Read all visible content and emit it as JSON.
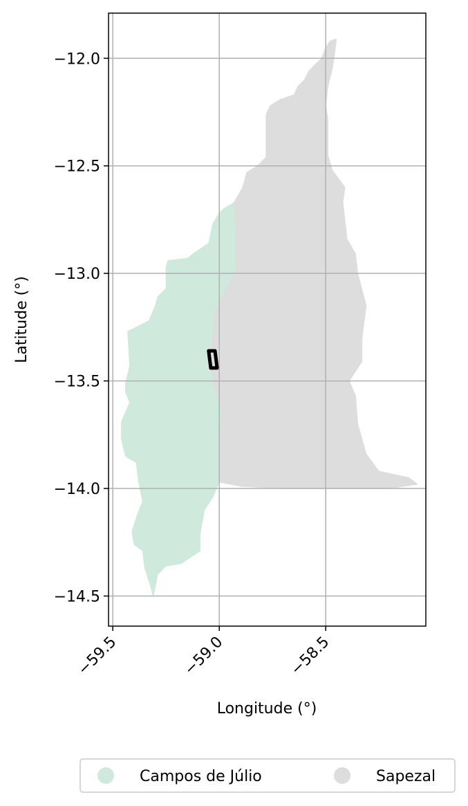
{
  "chart_data": {
    "type": "map",
    "xlabel": "Longitude (°)",
    "ylabel": "Latitude (°)",
    "xlim": [
      -59.52,
      -58.03
    ],
    "ylim": [
      -14.64,
      -11.79
    ],
    "x_ticks": [
      -59.5,
      -59.0,
      -58.5
    ],
    "x_tick_labels": [
      "−59.5",
      "−59.0",
      "−58.5"
    ],
    "y_ticks": [
      -12.0,
      -12.5,
      -13.0,
      -13.5,
      -14.0,
      -14.5
    ],
    "y_tick_labels": [
      "−12.0",
      "−12.5",
      "−13.0",
      "−13.5",
      "−14.0",
      "−14.5"
    ],
    "grid": true,
    "legend_position": "bottom-center",
    "legend": [
      {
        "name": "Campos de Júlio",
        "color": "#cfeadd"
      },
      {
        "name": "Sapezal",
        "color": "#dddddd"
      }
    ],
    "regions": [
      {
        "name": "Campos de Júlio",
        "color": "#cfeadd",
        "outline": [
          [
            -58.93,
            -12.67
          ],
          [
            -58.98,
            -12.7
          ],
          [
            -59.0,
            -12.72
          ],
          [
            -59.03,
            -12.77
          ],
          [
            -59.05,
            -12.86
          ],
          [
            -59.11,
            -12.9
          ],
          [
            -59.15,
            -12.93
          ],
          [
            -59.24,
            -12.94
          ],
          [
            -59.25,
            -12.97
          ],
          [
            -59.25,
            -13.07
          ],
          [
            -59.29,
            -13.11
          ],
          [
            -59.3,
            -13.15
          ],
          [
            -59.33,
            -13.22
          ],
          [
            -59.37,
            -13.24
          ],
          [
            -59.43,
            -13.27
          ],
          [
            -59.42,
            -13.43
          ],
          [
            -59.44,
            -13.51
          ],
          [
            -59.44,
            -13.55
          ],
          [
            -59.42,
            -13.6
          ],
          [
            -59.46,
            -13.69
          ],
          [
            -59.46,
            -13.77
          ],
          [
            -59.44,
            -13.85
          ],
          [
            -59.39,
            -13.88
          ],
          [
            -59.38,
            -13.96
          ],
          [
            -59.36,
            -14.06
          ],
          [
            -59.38,
            -14.11
          ],
          [
            -59.41,
            -14.2
          ],
          [
            -59.4,
            -14.26
          ],
          [
            -59.36,
            -14.29
          ],
          [
            -59.35,
            -14.37
          ],
          [
            -59.33,
            -14.43
          ],
          [
            -59.31,
            -14.5
          ],
          [
            -59.29,
            -14.4
          ],
          [
            -59.25,
            -14.36
          ],
          [
            -59.18,
            -14.35
          ],
          [
            -59.09,
            -14.29
          ],
          [
            -59.09,
            -14.21
          ],
          [
            -59.07,
            -14.1
          ],
          [
            -59.03,
            -14.04
          ],
          [
            -59.0,
            -13.97
          ],
          [
            -59.0,
            -13.84
          ],
          [
            -58.99,
            -13.63
          ],
          [
            -59.03,
            -13.5
          ],
          [
            -59.04,
            -13.38
          ],
          [
            -59.02,
            -13.18
          ],
          [
            -58.97,
            -13.08
          ],
          [
            -58.92,
            -12.98
          ],
          [
            -58.92,
            -12.8
          ],
          [
            -58.93,
            -12.67
          ]
        ]
      },
      {
        "name": "Sapezal",
        "color": "#dddddd",
        "outline": [
          [
            -58.45,
            -11.91
          ],
          [
            -58.48,
            -11.92
          ],
          [
            -58.5,
            -11.95
          ],
          [
            -58.52,
            -12.0
          ],
          [
            -58.55,
            -12.03
          ],
          [
            -58.58,
            -12.06
          ],
          [
            -58.6,
            -12.1
          ],
          [
            -58.63,
            -12.13
          ],
          [
            -58.65,
            -12.17
          ],
          [
            -58.71,
            -12.19
          ],
          [
            -58.76,
            -12.22
          ],
          [
            -58.78,
            -12.26
          ],
          [
            -58.78,
            -12.3
          ],
          [
            -58.78,
            -12.37
          ],
          [
            -58.78,
            -12.46
          ],
          [
            -58.82,
            -12.5
          ],
          [
            -58.87,
            -12.53
          ],
          [
            -58.89,
            -12.6
          ],
          [
            -58.93,
            -12.67
          ],
          [
            -58.92,
            -12.8
          ],
          [
            -58.92,
            -12.98
          ],
          [
            -58.97,
            -13.08
          ],
          [
            -59.02,
            -13.18
          ],
          [
            -59.04,
            -13.38
          ],
          [
            -59.03,
            -13.5
          ],
          [
            -58.99,
            -13.63
          ],
          [
            -59.0,
            -13.84
          ],
          [
            -59.0,
            -13.97
          ],
          [
            -58.9,
            -13.99
          ],
          [
            -58.7,
            -14.0
          ],
          [
            -58.45,
            -14.0
          ],
          [
            -58.2,
            -14.0
          ],
          [
            -58.07,
            -13.98
          ],
          [
            -58.11,
            -13.95
          ],
          [
            -58.25,
            -13.92
          ],
          [
            -58.31,
            -13.84
          ],
          [
            -58.35,
            -13.7
          ],
          [
            -58.36,
            -13.57
          ],
          [
            -58.39,
            -13.5
          ],
          [
            -58.33,
            -13.41
          ],
          [
            -58.33,
            -13.3
          ],
          [
            -58.31,
            -13.15
          ],
          [
            -58.35,
            -13.0
          ],
          [
            -58.36,
            -12.91
          ],
          [
            -58.4,
            -12.84
          ],
          [
            -58.42,
            -12.67
          ],
          [
            -58.41,
            -12.6
          ],
          [
            -58.47,
            -12.52
          ],
          [
            -58.49,
            -12.45
          ],
          [
            -58.49,
            -12.38
          ],
          [
            -58.49,
            -12.28
          ],
          [
            -58.5,
            -12.22
          ],
          [
            -58.49,
            -12.13
          ],
          [
            -58.47,
            -12.05
          ],
          [
            -58.46,
            -11.99
          ],
          [
            -58.45,
            -11.91
          ]
        ]
      }
    ],
    "highlight_polygon": [
      [
        -59.05,
        -13.36
      ],
      [
        -59.02,
        -13.36
      ],
      [
        -59.01,
        -13.44
      ],
      [
        -59.04,
        -13.44
      ]
    ]
  }
}
